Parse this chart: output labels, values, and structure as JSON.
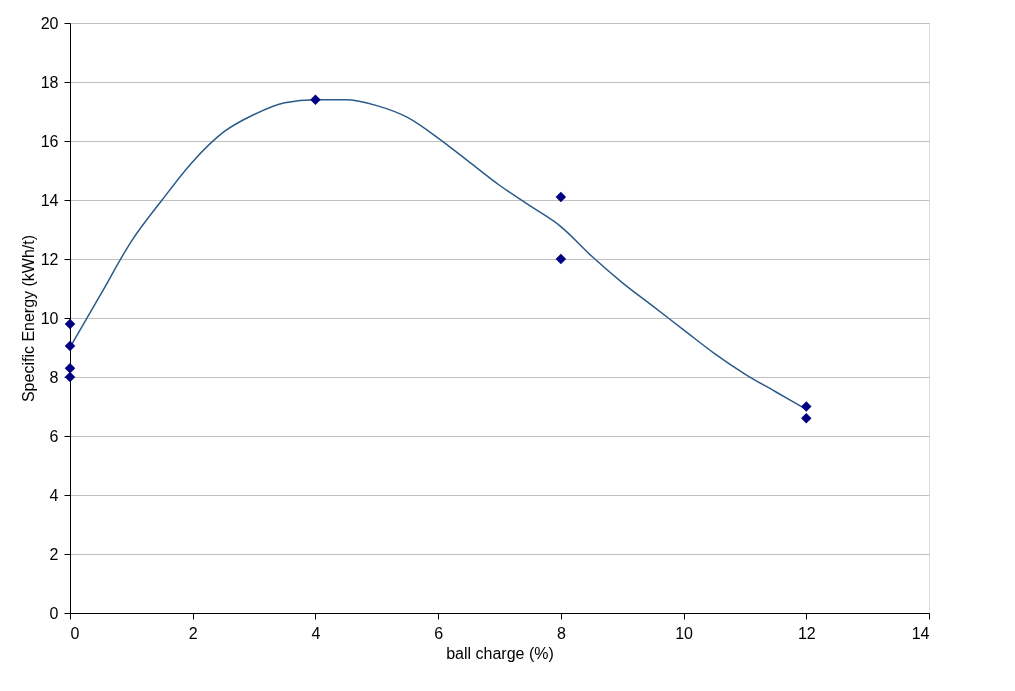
{
  "chart_data": {
    "type": "scatter",
    "xlabel": "ball charge (%)",
    "ylabel": "Specific Energy (kWh/t)",
    "xlim": [
      0,
      14
    ],
    "xticks": [
      0,
      2,
      4,
      6,
      8,
      10,
      12,
      14
    ],
    "ylim": [
      0,
      20
    ],
    "yticks": [
      0,
      2,
      4,
      6,
      8,
      10,
      12,
      14,
      16,
      18,
      20
    ],
    "grid": "y",
    "marker": "diamond",
    "series": [
      {
        "color": "#000080",
        "x": [
          0,
          0,
          0,
          0,
          4,
          8,
          8,
          12,
          12
        ],
        "values": [
          9.8,
          9.05,
          8.3,
          8.0,
          17.4,
          14.1,
          12.0,
          7.0,
          6.6
        ]
      },
      {
        "type": "line",
        "color": "#2a5a8a",
        "marker": "none",
        "line_style": "solid",
        "x": [
          0,
          0.5,
          1,
          1.5,
          2,
          2.5,
          3,
          3.5,
          4,
          4.5,
          5,
          5.5,
          6,
          6.5,
          7,
          7.5,
          8,
          8.5,
          9,
          9.5,
          10,
          10.5,
          11,
          11.5,
          12
        ],
        "values": [
          9.0,
          10.8,
          12.6,
          14.0,
          15.3,
          16.3,
          16.9,
          17.3,
          17.4,
          17.4,
          17.2,
          16.8,
          16.1,
          15.3,
          14.5,
          13.8,
          13.1,
          12.1,
          11.2,
          10.4,
          9.6,
          8.8,
          8.1,
          7.5,
          6.9
        ]
      }
    ]
  }
}
